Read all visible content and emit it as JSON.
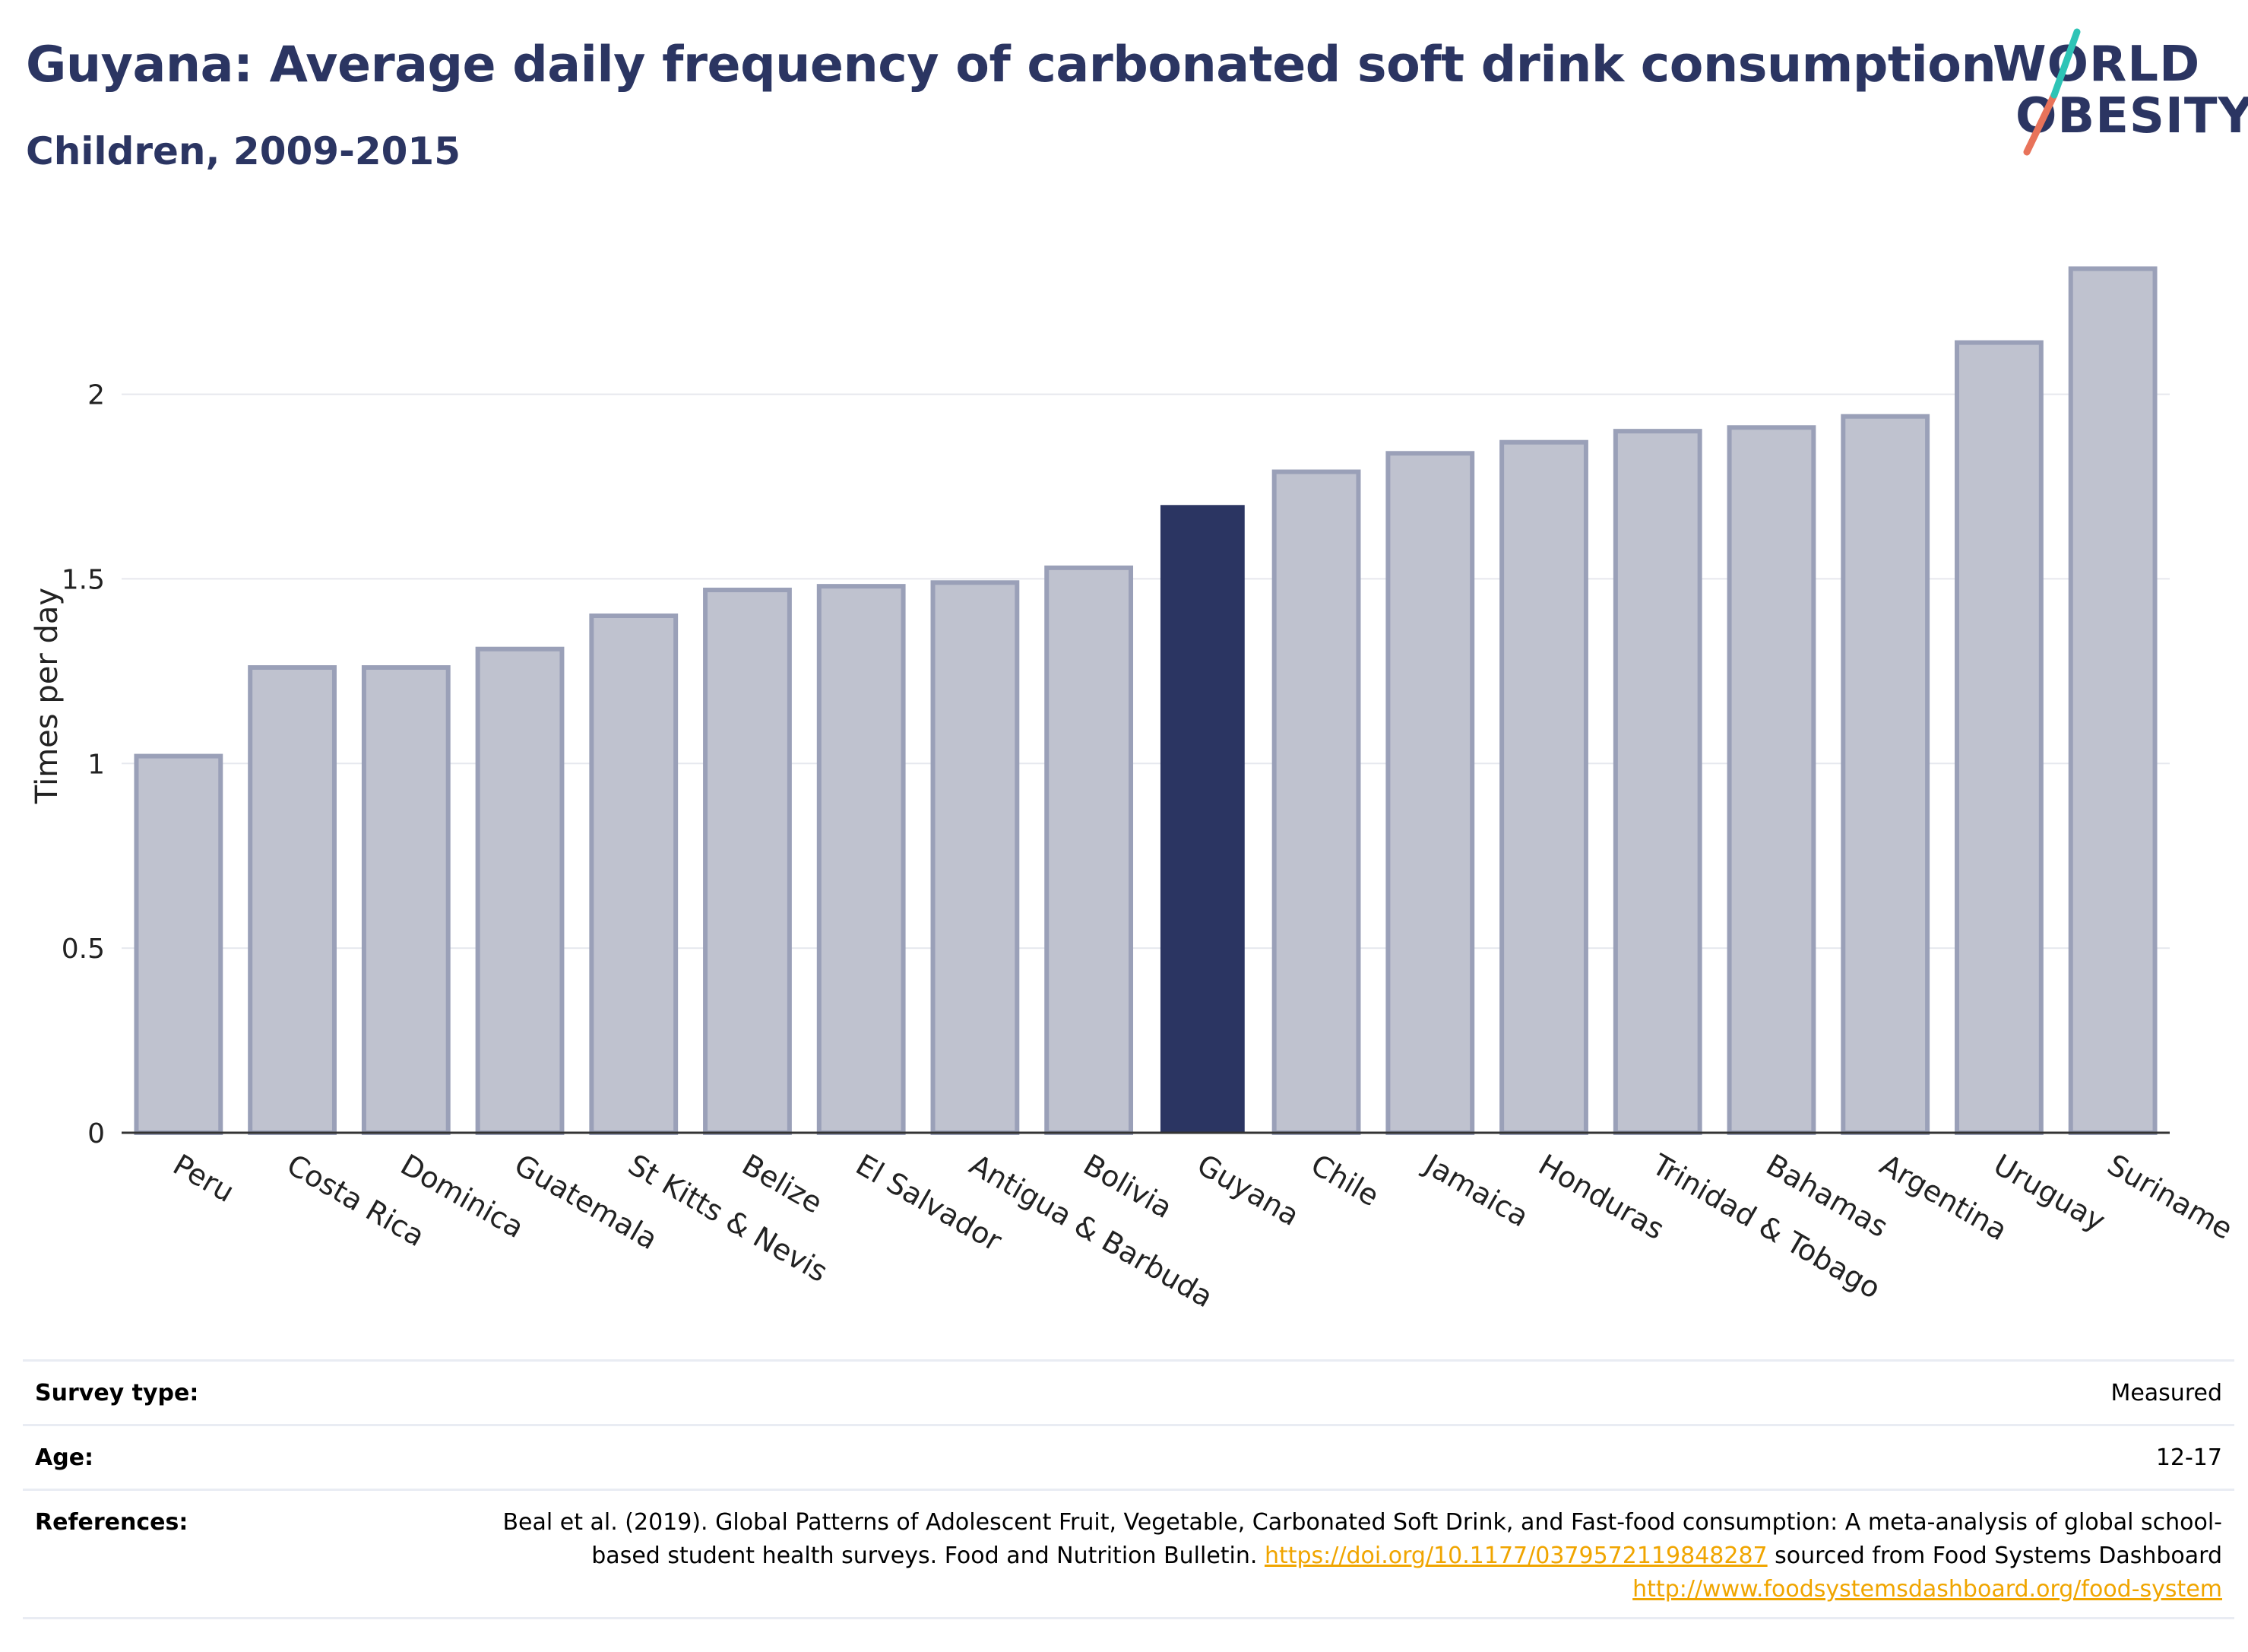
{
  "header": {
    "title": "Guyana: Average daily frequency of carbonated soft drink consumption",
    "subtitle": "Children, 2009-2015"
  },
  "logo": {
    "line1": "WORLD",
    "line2": "OBESITY",
    "accent_colors": [
      "#2ec4b6",
      "#e8735a"
    ]
  },
  "colors": {
    "highlight_bar": "#2b3562",
    "other_bar": "#bfc2cf",
    "other_bar_border": "#9aa0b8",
    "grid": "#e6e8ee",
    "link": "#f0a500"
  },
  "chart_data": {
    "type": "bar",
    "title": "Guyana: Average daily frequency of carbonated soft drink consumption",
    "subtitle": "Children, 2009-2015",
    "xlabel": "",
    "ylabel": "Times per day",
    "categories": [
      "Peru",
      "Costa Rica",
      "Dominica",
      "Guatemala",
      "St Kitts & Nevis",
      "Belize",
      "El Salvador",
      "Antigua & Barbuda",
      "Bolivia",
      "Guyana",
      "Chile",
      "Jamaica",
      "Honduras",
      "Trinidad & Tobago",
      "Bahamas",
      "Argentina",
      "Uruguay",
      "Suriname"
    ],
    "values": [
      1.02,
      1.26,
      1.26,
      1.31,
      1.4,
      1.47,
      1.48,
      1.49,
      1.53,
      1.7,
      1.79,
      1.84,
      1.87,
      1.9,
      1.91,
      1.94,
      2.14,
      2.34
    ],
    "highlight": "Guyana",
    "ylim": [
      0,
      2.45
    ],
    "yticks": [
      0,
      0.5,
      1,
      1.5,
      2
    ],
    "ytick_labels": [
      "0",
      "0.5",
      "1",
      "1.5",
      "2"
    ],
    "grid": true,
    "legend": "none"
  },
  "meta": {
    "survey_type_label": "Survey type:",
    "survey_type_value": "Measured",
    "age_label": "Age:",
    "age_value": "12-17",
    "references_label": "References:",
    "references_text_1": "Beal et al. (2019). Global Patterns of Adolescent Fruit, Vegetable, Carbonated Soft Drink, and Fast-food consumption: A meta-analysis of global school-based student health surveys. Food and Nutrition Bulletin. ",
    "references_link_1": "https://doi.org/10.1177/0379572119848287",
    "references_text_2": " sourced from Food Systems Dashboard ",
    "references_link_2": "http://www.foodsystemsdashboard.org/food-system"
  }
}
